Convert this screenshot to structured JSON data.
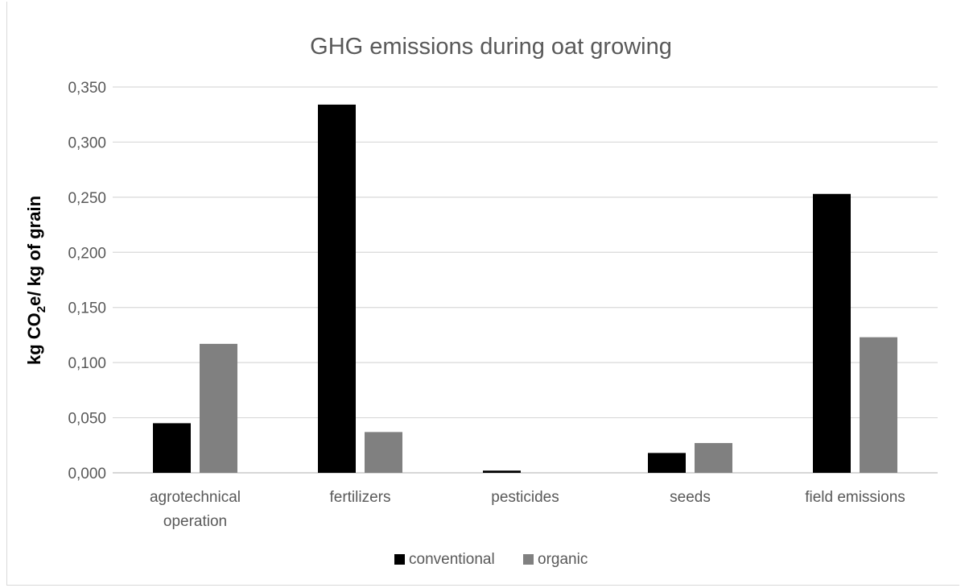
{
  "chart_data": {
    "type": "bar",
    "title": "GHG emissions during oat growing",
    "ylabel": {
      "prefix": "kg CO",
      "sub": "2",
      "suffix": "e/ kg of grain"
    },
    "xlabel": "",
    "categories": [
      [
        "agrotechnical",
        "operation"
      ],
      [
        "fertilizers"
      ],
      [
        "pesticides"
      ],
      [
        "seeds"
      ],
      [
        "field emissions"
      ]
    ],
    "series": [
      {
        "name": "conventional",
        "color": "#000000",
        "values": [
          0.045,
          0.334,
          0.002,
          0.018,
          0.253
        ]
      },
      {
        "name": "organic",
        "color": "#808080",
        "values": [
          0.117,
          0.037,
          0.0,
          0.027,
          0.123
        ]
      }
    ],
    "ylim": [
      0,
      0.35
    ],
    "yticks": [
      "0,000",
      "0,050",
      "0,100",
      "0,150",
      "0,200",
      "0,250",
      "0,300",
      "0,350"
    ],
    "grid": true,
    "legend_position": "bottom"
  }
}
